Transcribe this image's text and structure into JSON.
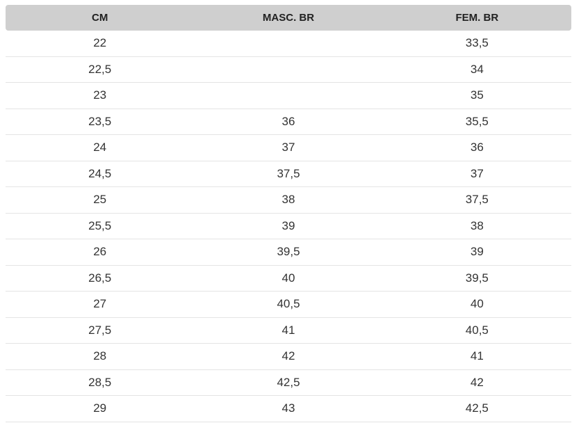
{
  "headers": [
    "CM",
    "MASC. BR",
    "FEM. BR"
  ],
  "rows": [
    [
      "22",
      "",
      "33,5"
    ],
    [
      "22,5",
      "",
      "34"
    ],
    [
      "23",
      "",
      "35"
    ],
    [
      "23,5",
      "36",
      "35,5"
    ],
    [
      "24",
      "37",
      "36"
    ],
    [
      "24,5",
      "37,5",
      "37"
    ],
    [
      "25",
      "38",
      "37,5"
    ],
    [
      "25,5",
      "39",
      "38"
    ],
    [
      "26",
      "39,5",
      "39"
    ],
    [
      "26,5",
      "40",
      "39,5"
    ],
    [
      "27",
      "40,5",
      "40"
    ],
    [
      "27,5",
      "41",
      "40,5"
    ],
    [
      "28",
      "42",
      "41"
    ],
    [
      "28,5",
      "42,5",
      "42"
    ],
    [
      "29",
      "43",
      "42,5"
    ]
  ]
}
